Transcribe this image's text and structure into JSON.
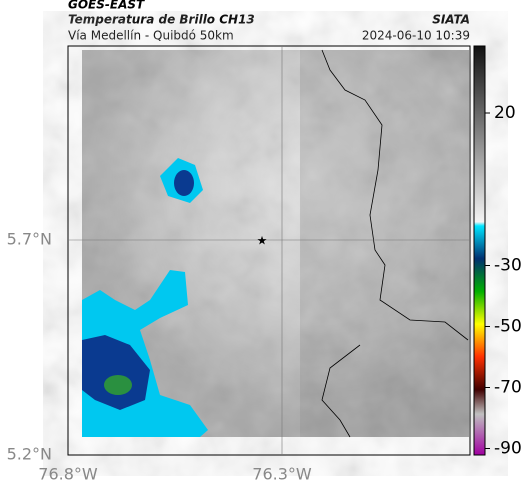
{
  "header": {
    "source": "GOES-EAST",
    "title": "Temperatura de Brillo CH13",
    "subtitle": "Vía Medellín - Quibdó 50km",
    "credit": "SIATA",
    "timestamp": "2024-06-10 10:39"
  },
  "map": {
    "lat_ticks": [
      "5.7°N",
      "5.2°N"
    ],
    "lon_ticks": [
      "76.8°W",
      "76.3°W"
    ]
  },
  "colorbar": {
    "ticks": [
      20,
      -30,
      -50,
      -70,
      -90
    ]
  }
}
